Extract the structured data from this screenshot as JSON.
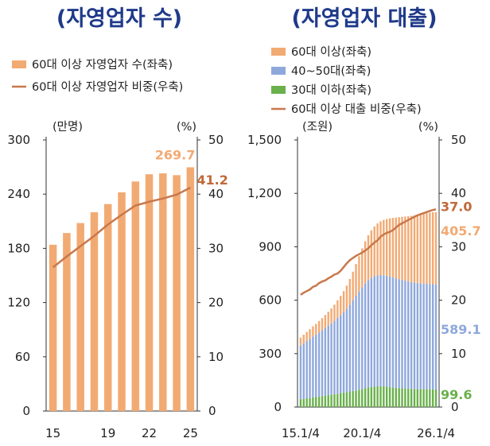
{
  "chart_data": [
    {
      "type": "bar",
      "title": "(자영업자 수)",
      "legend": [
        "60대 이상 자영업자 수(좌축)",
        "60대 이상 자영업자 비중(우축)"
      ],
      "left_unit": "(만명)",
      "right_unit": "(%)",
      "categories": [
        "15",
        "16",
        "17",
        "18",
        "19",
        "20",
        "21",
        "22",
        "23",
        "24",
        "25"
      ],
      "x_tick_labels": [
        "15",
        "19",
        "22",
        "25"
      ],
      "series": [
        {
          "name": "60대 이상 자영업자 수(좌축)",
          "axis": "left",
          "type": "bar",
          "values": [
            184,
            197,
            208,
            220,
            229,
            242,
            254,
            262,
            263,
            261,
            269.7
          ]
        },
        {
          "name": "60대 이상 자영업자 비중(우축)",
          "axis": "right",
          "type": "line",
          "values": [
            26.5,
            28.5,
            30.4,
            32.3,
            34.4,
            36.2,
            37.9,
            38.6,
            39.2,
            39.9,
            41.2
          ]
        }
      ],
      "left_ticks": [
        "0",
        "60",
        "120",
        "180",
        "240",
        "300"
      ],
      "right_ticks": [
        "0",
        "10",
        "20",
        "30",
        "40",
        "50"
      ],
      "ylim_left": [
        0,
        300
      ],
      "ylim_right": [
        0,
        50
      ],
      "annotations": {
        "bar_last": "269.7",
        "line_last": "41.2"
      },
      "colors": {
        "bar": "#f2aa73",
        "line": "#c8784b",
        "bar_label": "#f2aa73",
        "line_label": "#c0693a"
      }
    },
    {
      "type": "bar",
      "stacked": true,
      "title": "(자영업자 대출)",
      "legend": [
        "60대 이상(좌축)",
        "40~50대(좌축)",
        "30대 이하(좌축)",
        "60대 이상 대출 비중(우축)"
      ],
      "left_unit": "(조원)",
      "right_unit": "(%)",
      "x_tick_labels": [
        "15.1/4",
        "20.1/4",
        "26.1/4"
      ],
      "x_start": "2015Q1",
      "x_end": "2026Q1",
      "series_quarterly": {
        "30대 이하(좌축)": [
          43,
          46,
          49,
          51,
          54,
          56,
          59,
          61,
          64,
          67,
          70,
          72,
          75,
          78,
          81,
          84,
          87,
          90,
          93,
          97,
          101,
          105,
          109,
          112,
          114,
          116,
          117,
          116,
          114,
          112,
          110,
          108,
          106,
          105,
          104,
          103,
          102,
          101,
          101,
          100,
          100,
          100,
          99.8,
          99.7,
          99.6
        ],
        "40~50대(좌축)": [
          302,
          312,
          322,
          332,
          342,
          351,
          360,
          370,
          380,
          390,
          400,
          412,
          425,
          438,
          452,
          468,
          488,
          510,
          532,
          552,
          572,
          590,
          604,
          614,
          620,
          623,
          624,
          624,
          623,
          621,
          618,
          615,
          612,
          609,
          606,
          603,
          600,
          598,
          596,
          594,
          593,
          592,
          591,
          590,
          589.1
        ],
        "60대 이상(좌축)": [
          45,
          48,
          51,
          54,
          57,
          60,
          64,
          68,
          73,
          78,
          84,
          91,
          99,
          108,
          118,
          130,
          144,
          160,
          178,
          198,
          218,
          236,
          252,
          266,
          280,
          292,
          302,
          311,
          319,
          327,
          334,
          341,
          348,
          354,
          360,
          366,
          372,
          378,
          383,
          388,
          393,
          397,
          401,
          404,
          405.7
        ],
        "60대 이상 대출 비중(우축)": [
          21.0,
          21.4,
          21.7,
          22.0,
          22.5,
          22.7,
          23.2,
          23.5,
          23.7,
          24.1,
          24.4,
          24.8,
          25.0,
          25.5,
          26.2,
          26.9,
          27.5,
          27.9,
          28.3,
          28.6,
          28.9,
          29.3,
          29.7,
          30.3,
          30.8,
          31.2,
          31.9,
          32.3,
          32.6,
          32.8,
          33.1,
          33.6,
          34.1,
          34.4,
          34.7,
          35.0,
          35.3,
          35.6,
          35.9,
          36.1,
          36.3,
          36.5,
          36.7,
          36.9,
          37.0
        ]
      },
      "left_ticks": [
        "0",
        "300",
        "600",
        "900",
        "1,200",
        "1,500"
      ],
      "right_ticks": [
        "0",
        "10",
        "20",
        "30",
        "40",
        "50"
      ],
      "ylim_left": [
        0,
        1500
      ],
      "ylim_right": [
        0,
        50
      ],
      "annotations": {
        "line_last": "37.0",
        "old_last": "405.7",
        "mid_last": "589.1",
        "young_last": "99.6"
      },
      "colors": {
        "old": "#f2aa73",
        "mid": "#8fa8dc",
        "young": "#6ab04c",
        "line": "#c8784b",
        "line_label": "#c0693a",
        "old_label": "#f2aa73",
        "mid_label": "#8fa8dc",
        "young_label": "#6ab04c"
      }
    }
  ]
}
